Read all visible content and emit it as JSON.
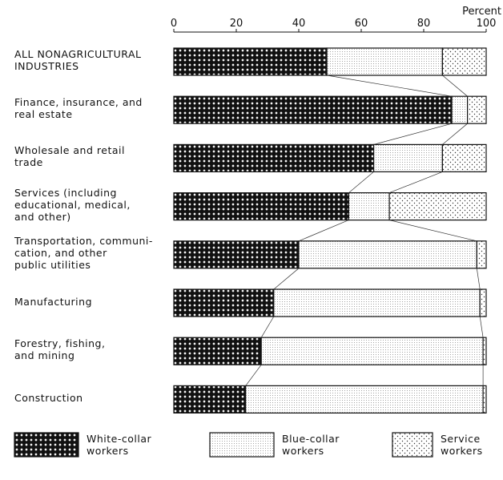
{
  "chart_data": {
    "type": "stacked-bar-horizontal",
    "x_unit_label": "Percent",
    "categories": [
      "ALL NONAGRICULTURAL\nINDUSTRIES",
      "Finance, insurance, and\nreal estate",
      "Wholesale and retail\ntrade",
      "Services (including\neducational, medical,\nand other)",
      "Transportation, communi-\ncation, and other\npublic utilities",
      "Manufacturing",
      "Forestry, fishing,\nand mining",
      "Construction"
    ],
    "series": [
      {
        "name": "White-collar\nworkers",
        "pattern": "crosshatch",
        "values": [
          49,
          89,
          64,
          56,
          40,
          32,
          28,
          23
        ]
      },
      {
        "name": "Blue-collar\nworkers",
        "pattern": "fine-dots",
        "values": [
          37,
          5,
          22,
          13,
          57,
          66,
          71,
          76
        ]
      },
      {
        "name": "Service\nworkers",
        "pattern": "sparse-dots",
        "values": [
          14,
          6,
          14,
          31,
          3,
          2,
          1,
          1
        ]
      }
    ],
    "xlim": [
      0,
      100
    ],
    "xticks": [
      0,
      20,
      40,
      60,
      80,
      100
    ]
  }
}
